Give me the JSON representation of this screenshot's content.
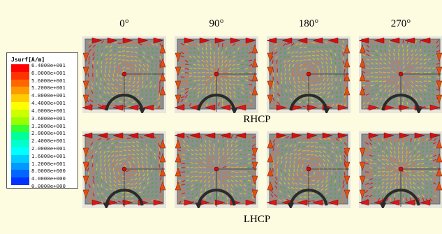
{
  "columns": [
    "0°",
    "90°",
    "180°",
    "270°"
  ],
  "rows": [
    "RHCP",
    "LHCP"
  ],
  "legend": {
    "title": "Jsurf[A/m]",
    "values": [
      "6.4000e+001",
      "6.0000e+001",
      "5.6000e+001",
      "5.2000e+001",
      "4.8000e+001",
      "4.4000e+001",
      "4.0000e+001",
      "3.6000e+001",
      "3.2000e+001",
      "2.8000e+001",
      "2.4000e+001",
      "2.0000e+001",
      "1.6000e+001",
      "1.2000e+001",
      "8.0000e+000",
      "4.0000e+000",
      "0.0000e+000"
    ],
    "colors": [
      "#ff0000",
      "#ff3300",
      "#ff6600",
      "#ff9900",
      "#ffcc00",
      "#ffff00",
      "#ccff00",
      "#99ff00",
      "#33ff33",
      "#00ff99",
      "#00ffcc",
      "#00ffff",
      "#00ccff",
      "#0099ff",
      "#0066ff",
      "#0033ff"
    ]
  }
}
